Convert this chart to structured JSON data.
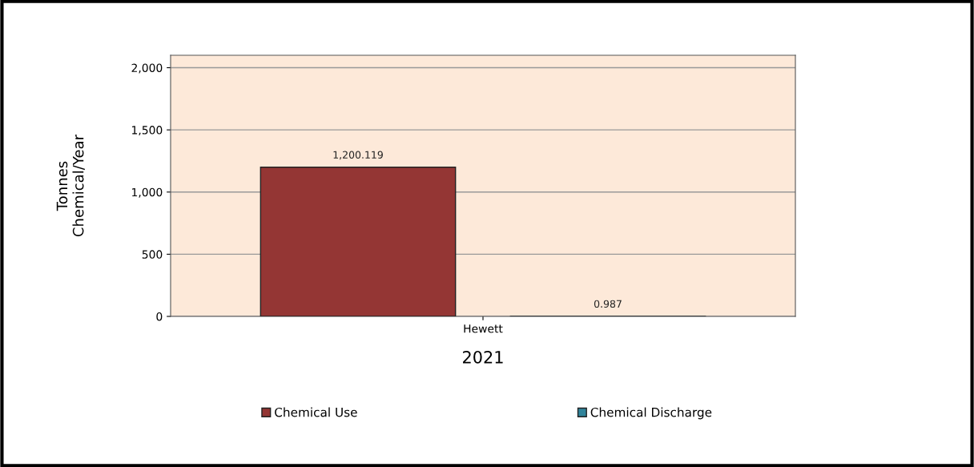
{
  "chart_data": {
    "type": "bar",
    "categories": [
      "Hewett"
    ],
    "series": [
      {
        "name": "Chemical Use",
        "color": "#943634",
        "values": [
          1200.119
        ]
      },
      {
        "name": "Chemical Discharge",
        "color": "#31849b",
        "values": [
          0.987
        ]
      }
    ],
    "xlabel": "2021",
    "ylabel": "Tonnes\nChemical/Year",
    "ylim": [
      0,
      2100
    ],
    "yticks": [
      {
        "value": 0,
        "label": "0"
      },
      {
        "value": 500,
        "label": "500"
      },
      {
        "value": 1000,
        "label": "1,000"
      },
      {
        "value": 1500,
        "label": "1,500"
      },
      {
        "value": 2000,
        "label": "2,000"
      }
    ],
    "value_labels": [
      [
        "1,200.119"
      ],
      [
        "0.987"
      ]
    ],
    "grid": "y",
    "legend": "bottom"
  }
}
